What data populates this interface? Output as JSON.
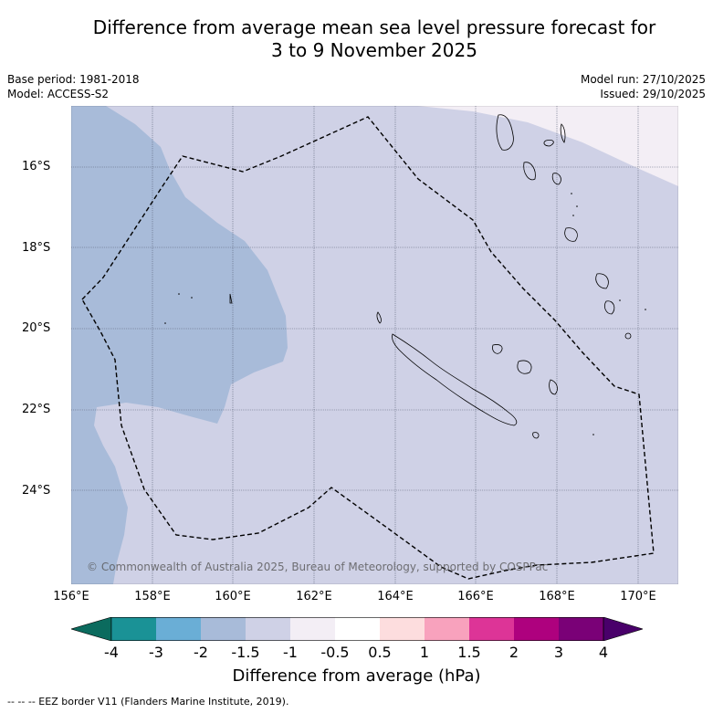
{
  "title": {
    "line1": "Difference from average mean sea level pressure forecast for",
    "line2": "3 to 9 November 2025"
  },
  "meta": {
    "base_period": "Base period: 1981-2018",
    "model": "Model: ACCESS-S2",
    "model_run": "Model run: 27/10/2025",
    "issued": "Issued: 29/10/2025"
  },
  "map": {
    "lat_labels": [
      "16°S",
      "18°S",
      "20°S",
      "22°S",
      "24°S"
    ],
    "lon_labels": [
      "156°E",
      "158°E",
      "160°E",
      "162°E",
      "164°E",
      "166°E",
      "168°E",
      "170°E"
    ],
    "credit": "© Commonwealth of Australia 2025, Bureau of Meteorology, supported by COSPPac",
    "region_colors": {
      "minus2_to_minus1_5": "#a8bbd9",
      "minus1_5_to_minus1": "#cfd1e6",
      "minus1_to_minus0_5": "#f3eef5"
    }
  },
  "colorbar": {
    "ticks": [
      "-4",
      "-3",
      "-2",
      "-1.5",
      "-1",
      "-0.5",
      "0.5",
      "1",
      "1.5",
      "2",
      "3",
      "4"
    ],
    "colors": [
      "#1a9296",
      "#6aaed6",
      "#a8bbd9",
      "#cfd1e6",
      "#f3eef5",
      "#ffffff",
      "#fdddde",
      "#f8a2bd",
      "#dd3497",
      "#ae017e",
      "#7a0177"
    ],
    "extend_low_color": "#0b6b5e",
    "extend_high_color": "#49006a",
    "label": "Difference from average (hPa)"
  },
  "footnote": "--  --  -- EEZ border V11 (Flanders Marine Institute, 2019)."
}
